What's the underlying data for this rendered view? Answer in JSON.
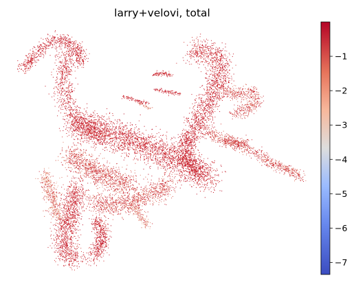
{
  "chart_data": {
    "type": "scatter",
    "title": "larry+velovi, total",
    "xlabel": "",
    "ylabel": "",
    "grid": false,
    "axes_visible": false,
    "legend": "colorbar-right",
    "colormap": "coolwarm",
    "colormap_stops": [
      "#3b4cc0",
      "#8db0fe",
      "#dddddd",
      "#f49a7b",
      "#b40426"
    ],
    "point_color_dominant": "#c8202e",
    "colorbar": {
      "vmin": -7.35,
      "vmax": 0.0,
      "ticks": [
        -1,
        -2,
        -3,
        -4,
        -5,
        -6,
        -7
      ],
      "tick_labels": [
        "−1",
        "−2",
        "−3",
        "−4",
        "−5",
        "−6",
        "−7"
      ]
    },
    "embedding_regions": [
      {
        "name": "upper-left-arm",
        "approx_value": -0.3
      },
      {
        "name": "central-band",
        "approx_value": -0.4
      },
      {
        "name": "upper-right-lobe",
        "approx_value": -0.3
      },
      {
        "name": "right-branch",
        "approx_value": -0.8
      },
      {
        "name": "lower-left-mass",
        "approx_value": -1.2
      },
      {
        "name": "bottom-tail",
        "approx_value": -0.6
      }
    ]
  }
}
